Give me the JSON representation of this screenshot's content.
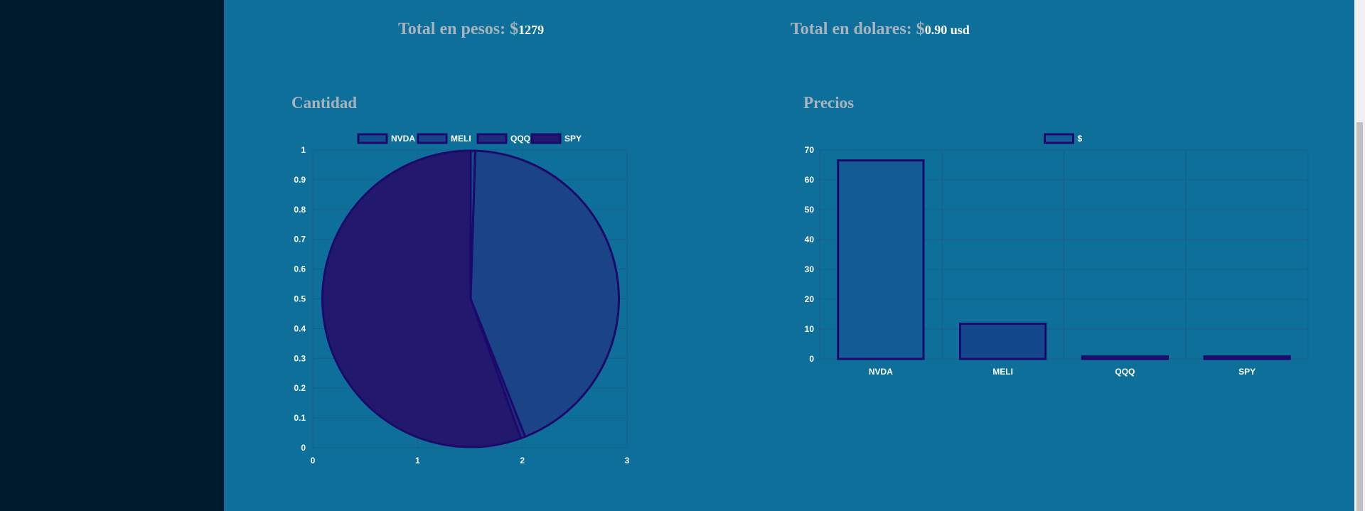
{
  "totals": {
    "pesos_label": "Total en pesos: $",
    "pesos_value": "1279",
    "dolares_label": "Total en dolares: $",
    "dolares_value": "0.90 usd"
  },
  "colors": {
    "sidebar": "#001b2e",
    "main": "#0e6f9b",
    "grid": "#1a5f8a",
    "border": "#1b0a6b"
  },
  "chart_data": [
    {
      "type": "pie",
      "title": "Cantidad",
      "legend": [
        "NVDA",
        "MELI",
        "QQQ",
        "SPY"
      ],
      "legend_position": "top",
      "slice_colors": [
        "#114f8c",
        "#1a4388",
        "#1e2d7d",
        "#22186d"
      ],
      "values": [
        0.005,
        0.435,
        0.005,
        0.555
      ],
      "x_ticks": [
        "0",
        "1",
        "2",
        "3"
      ],
      "y_ticks": [
        "0",
        "0.1",
        "0.2",
        "0.3",
        "0.4",
        "0.5",
        "0.6",
        "0.7",
        "0.8",
        "0.9",
        "1"
      ],
      "grid": true
    },
    {
      "type": "bar",
      "title": "Precios",
      "legend": [
        "$"
      ],
      "legend_position": "top",
      "categories": [
        "NVDA",
        "MELI",
        "QQQ",
        "SPY"
      ],
      "series": [
        {
          "name": "$",
          "values": [
            66.5,
            11.8,
            0.8,
            0.8
          ],
          "colors": [
            "#125b94",
            "#15478c",
            "#1b3b82",
            "#1f2e7a"
          ]
        }
      ],
      "y_ticks": [
        "0",
        "10",
        "20",
        "30",
        "40",
        "50",
        "60",
        "70"
      ],
      "ylim": [
        0,
        70
      ],
      "grid": true
    }
  ]
}
